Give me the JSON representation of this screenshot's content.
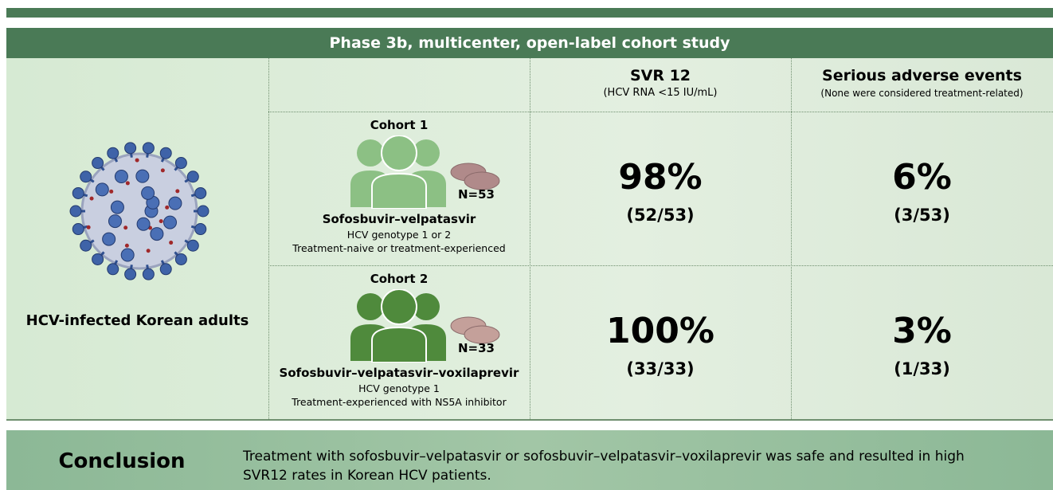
{
  "header": {
    "title": "Phase 3b, multicenter, open-label cohort study"
  },
  "population": "HCV-infected Korean adults",
  "columns": [
    {
      "title": "SVR 12",
      "subtitle": "(HCV RNA <15 IU/mL)"
    },
    {
      "title": "Serious adverse events",
      "subtitle": "(None were considered treatment-related)"
    }
  ],
  "cohorts": [
    {
      "name": "Cohort 1",
      "n": "N=53",
      "regimen": "Sofosbuvir–velpatasvir",
      "details": [
        "HCV genotype 1 or 2",
        "Treatment-naive or treatment-experienced"
      ],
      "svr": "98%",
      "svr_detail": "(52/53)",
      "sae": "6%",
      "sae_detail": "(3/53)"
    },
    {
      "name": "Cohort 2",
      "n": "N=33",
      "regimen": "Sofosbuvir–velpatasvir–voxilaprevir",
      "details": [
        "HCV genotype 1",
        "Treatment-experienced with NS5A inhibitor"
      ],
      "svr": "100%",
      "svr_detail": "(33/33)",
      "sae": "3%",
      "sae_detail": "(1/33)"
    }
  ],
  "conclusion": {
    "label": "Conclusion",
    "text": "Treatment with sofosbuvir–velpatasvir or sofosbuvir–velpatasvir–voxilaprevir was safe and resulted in high SVR12 rates in Korean HCV patients."
  }
}
